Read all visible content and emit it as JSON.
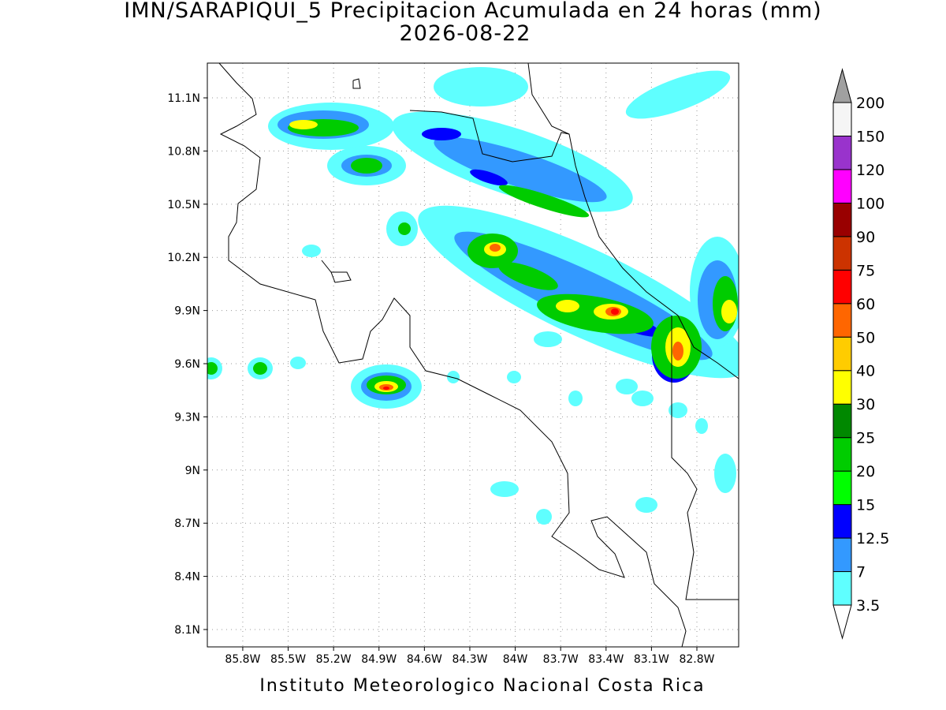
{
  "title": "IMN/SARAPIQUI_5 Precipitacion Acumulada en 24 horas (mm)",
  "date": "2026-08-22",
  "map": {
    "lon_range": [
      -86.034,
      -82.524
    ],
    "lat_range": [
      8.002,
      11.296
    ],
    "lat_ticks": [
      {
        "value": 11.1,
        "label": "11.1N"
      },
      {
        "value": 10.8,
        "label": "10.8N"
      },
      {
        "value": 10.5,
        "label": "10.5N"
      },
      {
        "value": 10.2,
        "label": "10.2N"
      },
      {
        "value": 9.9,
        "label": "9.9N"
      },
      {
        "value": 9.6,
        "label": "9.6N"
      },
      {
        "value": 9.3,
        "label": "9.3N"
      },
      {
        "value": 9,
        "label": "9N"
      },
      {
        "value": 8.7,
        "label": "8.7N"
      },
      {
        "value": 8.4,
        "label": "8.4N"
      },
      {
        "value": 8.1,
        "label": "8.1N"
      }
    ],
    "lon_ticks": [
      {
        "value": -85.8,
        "label": "85.8W"
      },
      {
        "value": -85.5,
        "label": "85.5W"
      },
      {
        "value": -85.2,
        "label": "85.2W"
      },
      {
        "value": -84.9,
        "label": "84.9W"
      },
      {
        "value": -84.6,
        "label": "84.6W"
      },
      {
        "value": -84.3,
        "label": "84.3W"
      },
      {
        "value": -84,
        "label": "84W"
      },
      {
        "value": -83.7,
        "label": "83.7W"
      },
      {
        "value": -83.4,
        "label": "83.4W"
      },
      {
        "value": -83.1,
        "label": "83.1W"
      },
      {
        "value": -82.8,
        "label": "82.8W"
      }
    ]
  },
  "colorbar": {
    "levels": [
      3.5,
      7,
      12.5,
      15,
      20,
      25,
      30,
      40,
      50,
      60,
      75,
      90,
      100,
      120,
      150,
      200
    ],
    "colors": [
      "#5fffff",
      "#3399ff",
      "#0000ff",
      "#00ff00",
      "#00cc00",
      "#008800",
      "#ffff00",
      "#ffcc00",
      "#ff6600",
      "#ff0000",
      "#cc3300",
      "#990000",
      "#ff00ff",
      "#9933cc",
      "#f5f5f5"
    ],
    "under_color": "#ffffff",
    "over_color": "#a0a0a0"
  },
  "footer": "Instituto Meteorologico Nacional Costa Rica"
}
